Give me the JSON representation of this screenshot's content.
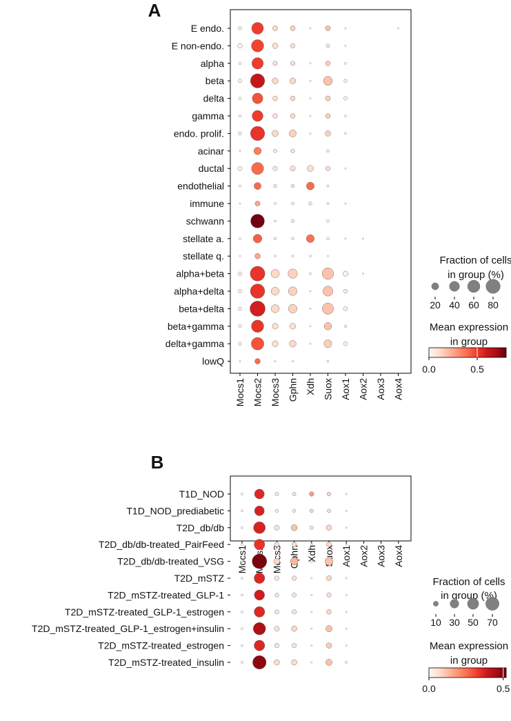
{
  "chart_data": [
    {
      "type": "dotplot",
      "panel_label": "A",
      "columns": [
        "Mocs1",
        "Mocs2",
        "Mocs3",
        "Gphn",
        "Xdh",
        "Suox",
        "Aox1",
        "Aox2",
        "Aox3",
        "Aox4"
      ],
      "rows": [
        "E endo.",
        "E non-endo.",
        "alpha",
        "beta",
        "delta",
        "gamma",
        "endo. prolif.",
        "acinar",
        "ductal",
        "endothelial",
        "immune",
        "schwann",
        "stellate a.",
        "stellate q.",
        "alpha+beta",
        "alpha+delta",
        "beta+delta",
        "beta+gamma",
        "delta+gamma",
        "lowQ"
      ],
      "fraction_pct": [
        [
          4,
          55,
          10,
          10,
          1,
          10,
          1,
          0,
          0,
          1
        ],
        [
          8,
          60,
          12,
          8,
          0,
          5,
          1,
          0,
          0,
          0
        ],
        [
          3,
          52,
          8,
          8,
          1,
          9,
          2,
          0,
          0,
          0
        ],
        [
          5,
          80,
          14,
          14,
          1,
          32,
          4,
          0,
          0,
          0
        ],
        [
          3,
          45,
          9,
          9,
          1,
          10,
          5,
          0,
          0,
          0
        ],
        [
          3,
          48,
          9,
          9,
          1,
          9,
          2,
          0,
          0,
          0
        ],
        [
          4,
          80,
          16,
          20,
          1,
          12,
          2,
          0,
          0,
          0
        ],
        [
          1,
          22,
          5,
          6,
          0,
          3,
          0,
          0,
          0,
          0
        ],
        [
          7,
          58,
          8,
          10,
          15,
          8,
          1,
          0,
          0,
          0
        ],
        [
          2,
          20,
          4,
          4,
          24,
          2,
          0,
          0,
          0,
          0
        ],
        [
          1,
          10,
          2,
          3,
          4,
          2,
          1,
          0,
          0,
          0
        ],
        [
          0,
          75,
          2,
          4,
          0,
          3,
          0,
          0,
          0,
          0
        ],
        [
          2,
          30,
          3,
          3,
          25,
          3,
          1,
          1,
          0,
          0
        ],
        [
          1,
          12,
          2,
          2,
          2,
          1,
          0,
          0,
          0,
          0
        ],
        [
          5,
          86,
          28,
          35,
          2,
          53,
          10,
          1,
          0,
          0
        ],
        [
          5,
          82,
          25,
          30,
          1,
          40,
          6,
          0,
          0,
          0
        ],
        [
          5,
          92,
          26,
          30,
          1,
          50,
          7,
          0,
          0,
          0
        ],
        [
          4,
          60,
          14,
          14,
          1,
          22,
          3,
          0,
          0,
          0
        ],
        [
          4,
          63,
          14,
          18,
          1,
          25,
          6,
          0,
          0,
          0
        ],
        [
          1,
          12,
          1,
          1,
          0,
          2,
          0,
          0,
          0,
          0
        ]
      ],
      "mean_expr": [
        [
          0.02,
          0.5,
          0.12,
          0.14,
          0.0,
          0.18,
          0.0,
          0.0,
          0.0,
          0.0
        ],
        [
          0.02,
          0.48,
          0.1,
          0.1,
          0.0,
          0.05,
          0.0,
          0.0,
          0.0,
          0.0
        ],
        [
          0.02,
          0.5,
          0.1,
          0.1,
          0.0,
          0.15,
          0.0,
          0.0,
          0.0,
          0.0
        ],
        [
          0.02,
          0.62,
          0.12,
          0.12,
          0.0,
          0.18,
          0.02,
          0.0,
          0.0,
          0.0
        ],
        [
          0.02,
          0.45,
          0.1,
          0.12,
          0.0,
          0.15,
          0.02,
          0.0,
          0.0,
          0.0
        ],
        [
          0.02,
          0.5,
          0.1,
          0.12,
          0.0,
          0.15,
          0.0,
          0.0,
          0.0,
          0.0
        ],
        [
          0.02,
          0.52,
          0.12,
          0.14,
          0.0,
          0.14,
          0.0,
          0.0,
          0.0,
          0.0
        ],
        [
          0.0,
          0.35,
          0.05,
          0.08,
          0.0,
          0.05,
          0.0,
          0.0,
          0.0,
          0.0
        ],
        [
          0.02,
          0.4,
          0.06,
          0.1,
          0.1,
          0.1,
          0.0,
          0.0,
          0.0,
          0.0
        ],
        [
          0.0,
          0.4,
          0.05,
          0.06,
          0.4,
          0.05,
          0.0,
          0.0,
          0.0,
          0.0
        ],
        [
          0.0,
          0.25,
          0.02,
          0.04,
          0.05,
          0.02,
          0.0,
          0.0,
          0.0,
          0.0
        ],
        [
          0.0,
          0.78,
          0.02,
          0.04,
          0.0,
          0.04,
          0.0,
          0.0,
          0.0,
          0.0
        ],
        [
          0.0,
          0.42,
          0.04,
          0.04,
          0.38,
          0.04,
          0.0,
          0.0,
          0.0,
          0.0
        ],
        [
          0.0,
          0.25,
          0.02,
          0.02,
          0.02,
          0.01,
          0.0,
          0.0,
          0.0,
          0.0
        ],
        [
          0.02,
          0.52,
          0.12,
          0.14,
          0.0,
          0.18,
          0.02,
          0.0,
          0.0,
          0.0
        ],
        [
          0.02,
          0.52,
          0.12,
          0.14,
          0.0,
          0.18,
          0.02,
          0.0,
          0.0,
          0.0
        ],
        [
          0.02,
          0.58,
          0.12,
          0.14,
          0.0,
          0.18,
          0.02,
          0.0,
          0.0,
          0.0
        ],
        [
          0.02,
          0.52,
          0.1,
          0.1,
          0.0,
          0.18,
          0.02,
          0.0,
          0.0,
          0.0
        ],
        [
          0.02,
          0.45,
          0.1,
          0.12,
          0.0,
          0.15,
          0.02,
          0.0,
          0.0,
          0.0
        ],
        [
          0.0,
          0.4,
          0.02,
          0.02,
          0.0,
          0.04,
          0.0,
          0.0,
          0.0,
          0.0
        ]
      ],
      "size_legend": {
        "title_line1": "Fraction of cells",
        "title_line2": "in group (%)",
        "values": [
          20,
          40,
          60,
          80
        ],
        "labels": [
          "20",
          "40",
          "60",
          "80"
        ]
      },
      "color_legend": {
        "title_line1": "Mean expression",
        "title_line2": "in group",
        "min": 0.0,
        "max": 0.8,
        "ticks": [
          0.0,
          0.5
        ],
        "tick_labels": [
          "0.0",
          "0.5"
        ]
      },
      "colormap": "Reds"
    },
    {
      "type": "dotplot",
      "panel_label": "B",
      "columns": [
        "Mocs1",
        "Mocs2",
        "Mocs3",
        "Gphn",
        "Xdh",
        "Suox",
        "Aox1",
        "Aox2",
        "Aox3",
        "Aox4"
      ],
      "rows": [
        "T1D_NOD",
        "T1D_NOD_prediabetic",
        "T2D_db/db",
        "T2D_db/db-treated_PairFeed",
        "T2D_db/db-treated_VSG",
        "T2D_mSTZ",
        "T2D_mSTZ-treated_GLP-1",
        "T2D_mSTZ-treated_GLP-1_estrogen",
        "T2D_mSTZ-treated_GLP-1_estrogen+insulin",
        "T2D_mSTZ-treated_estrogen",
        "T2D_mSTZ-treated_insulin"
      ],
      "fraction_pct": [
        [
          2,
          38,
          5,
          5,
          8,
          6,
          1,
          0,
          0,
          0
        ],
        [
          2,
          38,
          4,
          4,
          5,
          5,
          1,
          0,
          0,
          0
        ],
        [
          2,
          55,
          10,
          15,
          5,
          12,
          1,
          0,
          0,
          0
        ],
        [
          2,
          45,
          8,
          8,
          2,
          10,
          1,
          0,
          0,
          0
        ],
        [
          2,
          85,
          15,
          22,
          3,
          25,
          2,
          0,
          0,
          0
        ],
        [
          2,
          45,
          8,
          8,
          1,
          10,
          1,
          0,
          0,
          0
        ],
        [
          2,
          42,
          6,
          7,
          1,
          8,
          1,
          0,
          0,
          0
        ],
        [
          2,
          45,
          7,
          8,
          1,
          9,
          1,
          0,
          0,
          0
        ],
        [
          2,
          60,
          10,
          12,
          1,
          16,
          1,
          0,
          0,
          0
        ],
        [
          2,
          45,
          8,
          8,
          1,
          12,
          1,
          0,
          0,
          0
        ],
        [
          2,
          72,
          12,
          12,
          1,
          16,
          3,
          0,
          0,
          0
        ]
      ],
      "mean_expr": [
        [
          0.0,
          0.36,
          0.04,
          0.06,
          0.18,
          0.08,
          0.0,
          0.0,
          0.0,
          0.0
        ],
        [
          0.0,
          0.37,
          0.03,
          0.04,
          0.08,
          0.06,
          0.0,
          0.0,
          0.0,
          0.0
        ],
        [
          0.0,
          0.37,
          0.06,
          0.12,
          0.05,
          0.08,
          0.0,
          0.0,
          0.0,
          0.0
        ],
        [
          0.0,
          0.34,
          0.05,
          0.06,
          0.02,
          0.08,
          0.0,
          0.0,
          0.0,
          0.0
        ],
        [
          0.0,
          0.5,
          0.08,
          0.14,
          0.02,
          0.12,
          0.0,
          0.0,
          0.0,
          0.0
        ],
        [
          0.0,
          0.36,
          0.05,
          0.06,
          0.0,
          0.08,
          0.0,
          0.0,
          0.0,
          0.0
        ],
        [
          0.0,
          0.38,
          0.04,
          0.05,
          0.0,
          0.06,
          0.0,
          0.0,
          0.0,
          0.0
        ],
        [
          0.0,
          0.36,
          0.05,
          0.05,
          0.0,
          0.08,
          0.0,
          0.0,
          0.0,
          0.0
        ],
        [
          0.0,
          0.44,
          0.06,
          0.08,
          0.0,
          0.12,
          0.0,
          0.0,
          0.0,
          0.0
        ],
        [
          0.0,
          0.36,
          0.05,
          0.05,
          0.0,
          0.1,
          0.0,
          0.0,
          0.0,
          0.0
        ],
        [
          0.0,
          0.48,
          0.07,
          0.07,
          0.0,
          0.12,
          0.0,
          0.0,
          0.0,
          0.0
        ]
      ],
      "size_legend": {
        "title_line1": "Fraction of cells",
        "title_line2": "in group (%)",
        "values": [
          10,
          30,
          50,
          70
        ],
        "labels": [
          "10",
          "30",
          "50",
          "70"
        ]
      },
      "color_legend": {
        "title_line1": "Mean expression",
        "title_line2": "in group",
        "min": 0.0,
        "max": 0.52,
        "ticks": [
          0.0,
          0.5
        ],
        "tick_labels": [
          "0.0",
          "0.5"
        ]
      },
      "colormap": "Reds"
    }
  ]
}
